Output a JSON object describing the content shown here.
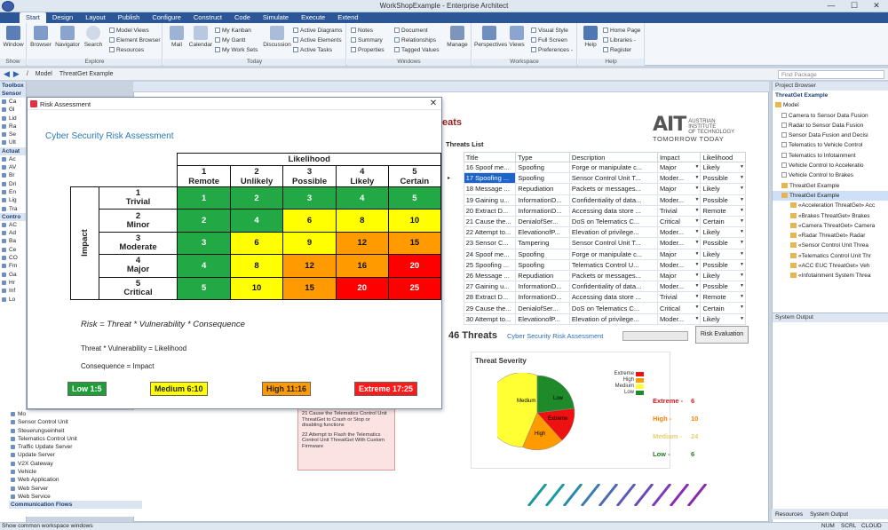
{
  "window": {
    "title": "WorkShopExample - Enterprise Architect",
    "min": "—",
    "max": "☐",
    "close": "✕"
  },
  "menu_tabs": [
    "Start",
    "Design",
    "Layout",
    "Publish",
    "Configure",
    "Construct",
    "Code",
    "Simulate",
    "Execute",
    "Extend"
  ],
  "ribbon": {
    "show": {
      "label": "Show",
      "window": "Window"
    },
    "explore": {
      "label": "Explore",
      "browser": "Browser",
      "navigator": "Navigator",
      "search": "Search",
      "items": [
        "Model Views",
        "Element Browser",
        "Resources"
      ]
    },
    "today": {
      "label": "Today",
      "mail": "Mail",
      "calendar": "Calendar",
      "items": [
        "My Kanban",
        "My Gantt",
        "My Work Sets"
      ],
      "discussion": "Discussion",
      "items2": [
        "Active Diagrams",
        "Active Elements",
        "Active Tasks"
      ]
    },
    "windows": {
      "label": "Windows",
      "items": [
        "Notes",
        "Summary",
        "Properties"
      ],
      "items2": [
        "Document",
        "Relationships",
        "Tagged Values"
      ],
      "manage": "Manage"
    },
    "workspace": {
      "label": "Workspace",
      "perspectives": "Perspectives",
      "views": "Views",
      "items": [
        "Visual Style",
        "Full Screen",
        "Preferences -"
      ]
    },
    "help": {
      "label": "Help",
      "help": "Help",
      "items": [
        "Home Page",
        "Libraries -",
        "Register"
      ]
    }
  },
  "addressbar": {
    "crumbs": [
      "/",
      "Model",
      "ThreatGet Example"
    ],
    "find_placeholder": "Find Package"
  },
  "toolbox": {
    "title": "Toolbox",
    "sections": [
      {
        "head": "Sensor",
        "items": [
          "Ca",
          "Gl",
          "Lid",
          "Ra",
          "Se",
          "Ult"
        ]
      },
      {
        "head": "Actuat",
        "items": [
          "Ac",
          "AV",
          "Br",
          "Dri",
          "En",
          "Lig",
          "Tra"
        ]
      },
      {
        "head": "Contro",
        "items": [
          "AC",
          "Ad",
          "Ba",
          "Ce",
          "CO",
          "Fm",
          "Ga",
          "Hr",
          "Inf",
          "Lo"
        ]
      }
    ],
    "list": [
      "Mo",
      "Sensor Control Unit",
      "Steuerungseinheit",
      "Telematics Control Unit",
      "Traffic Update Server",
      "Update Server",
      "V2X Gateway",
      "Vehicle",
      "Web Application",
      "Web Server",
      "Web Service",
      "Communication Flows"
    ]
  },
  "doc": {
    "heading": "eats",
    "ait": {
      "logo": "AIT",
      "sub1": "AUSTRIAN INSTITUTE",
      "sub2": "OF TECHNOLOGY",
      "tag": "TOMORROW TODAY"
    },
    "threats_list_label": "Threats List",
    "table_headers": [
      "Title",
      "Type",
      "Description",
      "Impact",
      "Likelihood"
    ],
    "rows": [
      {
        "title": "16 Spoof me...",
        "type": "Spoofing",
        "desc": "Forge or manipulate c...",
        "impact": "Major",
        "like": "Likely"
      },
      {
        "title": "17 Spoofing ...",
        "type": "Spoofing",
        "desc": "Sensor Control Unit T...",
        "impact": "Moder...",
        "like": "Possible",
        "sel": true
      },
      {
        "title": "18 Message ...",
        "type": "Repudiation",
        "desc": "Packets or messages...",
        "impact": "Major",
        "like": "Likely"
      },
      {
        "title": "19 Gaining u...",
        "type": "InformationD...",
        "desc": "Confidentiality of data...",
        "impact": "Moder...",
        "like": "Possible"
      },
      {
        "title": "20 Extract D...",
        "type": "InformationD...",
        "desc": "Accessing data store ...",
        "impact": "Trivial",
        "like": "Remote"
      },
      {
        "title": "21 Cause the...",
        "type": "DenialofSer...",
        "desc": "DoS on Telematics C...",
        "impact": "Critical",
        "like": "Certain"
      },
      {
        "title": "22 Attempt to...",
        "type": "ElevationofP...",
        "desc": "Elevation of privilege...",
        "impact": "Moder...",
        "like": "Likely"
      },
      {
        "title": "23 Sensor C...",
        "type": "Tampering",
        "desc": "Sensor Control Unit T...",
        "impact": "Moder...",
        "like": "Possible"
      },
      {
        "title": "24 Spoof me...",
        "type": "Spoofing",
        "desc": "Forge or manipulate c...",
        "impact": "Major",
        "like": "Likely"
      },
      {
        "title": "25 Spoofing ...",
        "type": "Spoofing",
        "desc": "Telematics Control U...",
        "impact": "Moder...",
        "like": "Possible"
      },
      {
        "title": "26 Message ...",
        "type": "Repudiation",
        "desc": "Packets or messages...",
        "impact": "Major",
        "like": "Likely"
      },
      {
        "title": "27 Gaining u...",
        "type": "InformationD...",
        "desc": "Confidentiality of data...",
        "impact": "Moder...",
        "like": "Possible"
      },
      {
        "title": "28 Extract D...",
        "type": "InformationD...",
        "desc": "Accessing data store ...",
        "impact": "Trivial",
        "like": "Remote"
      },
      {
        "title": "29 Cause the...",
        "type": "DenialofSer...",
        "desc": "DoS on Telematics C...",
        "impact": "Critical",
        "like": "Certain"
      },
      {
        "title": "30 Attempt to...",
        "type": "ElevationofP...",
        "desc": "Elevation of privilege...",
        "impact": "Moder...",
        "like": "Likely"
      }
    ],
    "threat_count": "46 Threats",
    "csra_link": "Cyber Security Risk Assessment",
    "risk_eval_btn": "Risk Evaluation",
    "severity_title": "Threat Severity",
    "severity_legend": [
      "Extreme",
      "High",
      "Medium",
      "Low"
    ],
    "severity_counts": [
      {
        "label": "Extreme -",
        "value": "6",
        "color": "#d11a1a"
      },
      {
        "label": "High -",
        "value": "10",
        "color": "#ff7f00"
      },
      {
        "label": "Medium -",
        "value": "24",
        "color": "#e0d070"
      },
      {
        "label": "Low -",
        "value": "6",
        "color": "#1f7a1f"
      }
    ],
    "pie_labels": {
      "medium": "Medium",
      "low": "Low",
      "extreme": "Extreme",
      "high": "High"
    },
    "notes": [
      "21 Cause the Telematics Control Unit ThreatGet to Crash or Stop or disabling functions",
      "22 Attempt to Flash the Telematics Control Unit ThreatGet With Custom Firmware"
    ]
  },
  "project_browser": {
    "title": "Project Browser",
    "root": "ThreatGet Example",
    "model": "Model",
    "items": [
      "Camera to Sensor Data Fusion",
      "Radar to Sensor Data Fusion",
      "Sensor Data Fusion and Decisi",
      "Telematics to Vehicle Control",
      "Telematics to Infotainment",
      "Vehicle Control to Acceleratio",
      "Vehicle Control to Brakes",
      "ThreatGet Example",
      "ThreatGet Example",
      "«Acceleration ThreatGet» Acc",
      "«Brakes ThreatGet» Brakes",
      "«Camera ThreatGet» Camera",
      "«Radar ThreatGet» Radar",
      "«Sensor Control Unit Threa",
      "«Telematics Control Unit Thr",
      "«ACC EUC ThreatGet» Veh",
      "«Infotainment System Threa"
    ]
  },
  "system_output": {
    "title": "System Output",
    "tab_resources": "Resources",
    "tab_sysout": "System Output",
    "tab_sys": "System"
  },
  "status": {
    "left": "Show common workspace windows",
    "right": [
      "NUM",
      "SCRL",
      "CLOUD"
    ]
  },
  "dialog": {
    "title": "Risk Assessment",
    "close": "✕",
    "heading": "Cyber Security Risk Assessment",
    "likelihood_label": "Likelihood",
    "impact_label": "Impact",
    "columns": [
      {
        "num": "1",
        "name": "Remote"
      },
      {
        "num": "2",
        "name": "Unlikely"
      },
      {
        "num": "3",
        "name": "Possible"
      },
      {
        "num": "4",
        "name": "Likely"
      },
      {
        "num": "5",
        "name": "Certain"
      }
    ],
    "rows": [
      {
        "num": "1",
        "name": "Trivial",
        "cells": [
          "1",
          "2",
          "3",
          "4",
          "5"
        ],
        "colors": [
          "g",
          "g",
          "g",
          "g",
          "g"
        ]
      },
      {
        "num": "2",
        "name": "Minor",
        "cells": [
          "2",
          "4",
          "6",
          "8",
          "10"
        ],
        "colors": [
          "g",
          "g",
          "y",
          "y",
          "y"
        ]
      },
      {
        "num": "3",
        "name": "Moderate",
        "cells": [
          "3",
          "6",
          "9",
          "12",
          "15"
        ],
        "colors": [
          "g",
          "y",
          "y",
          "o",
          "o"
        ]
      },
      {
        "num": "4",
        "name": "Major",
        "cells": [
          "4",
          "8",
          "12",
          "16",
          "20"
        ],
        "colors": [
          "g",
          "y",
          "o",
          "o",
          "r"
        ]
      },
      {
        "num": "5",
        "name": "Critical",
        "cells": [
          "5",
          "10",
          "15",
          "20",
          "25"
        ],
        "colors": [
          "g",
          "y",
          "o",
          "r",
          "r"
        ]
      }
    ],
    "formula1": "Risk = Threat * Vulnerability * Consequence",
    "formula2": "Threat * Vulnerability = Likelihood",
    "formula3": "Consequence = Impact",
    "badges": [
      "Low 1:5",
      "Medium 6:10",
      "High 11:16",
      "Extreme 17:25"
    ]
  },
  "colors": {
    "accent": "#2b5797",
    "green": "#22a845",
    "yellow": "#ffff00",
    "orange": "#ff9a00",
    "red": "#ff0000"
  }
}
